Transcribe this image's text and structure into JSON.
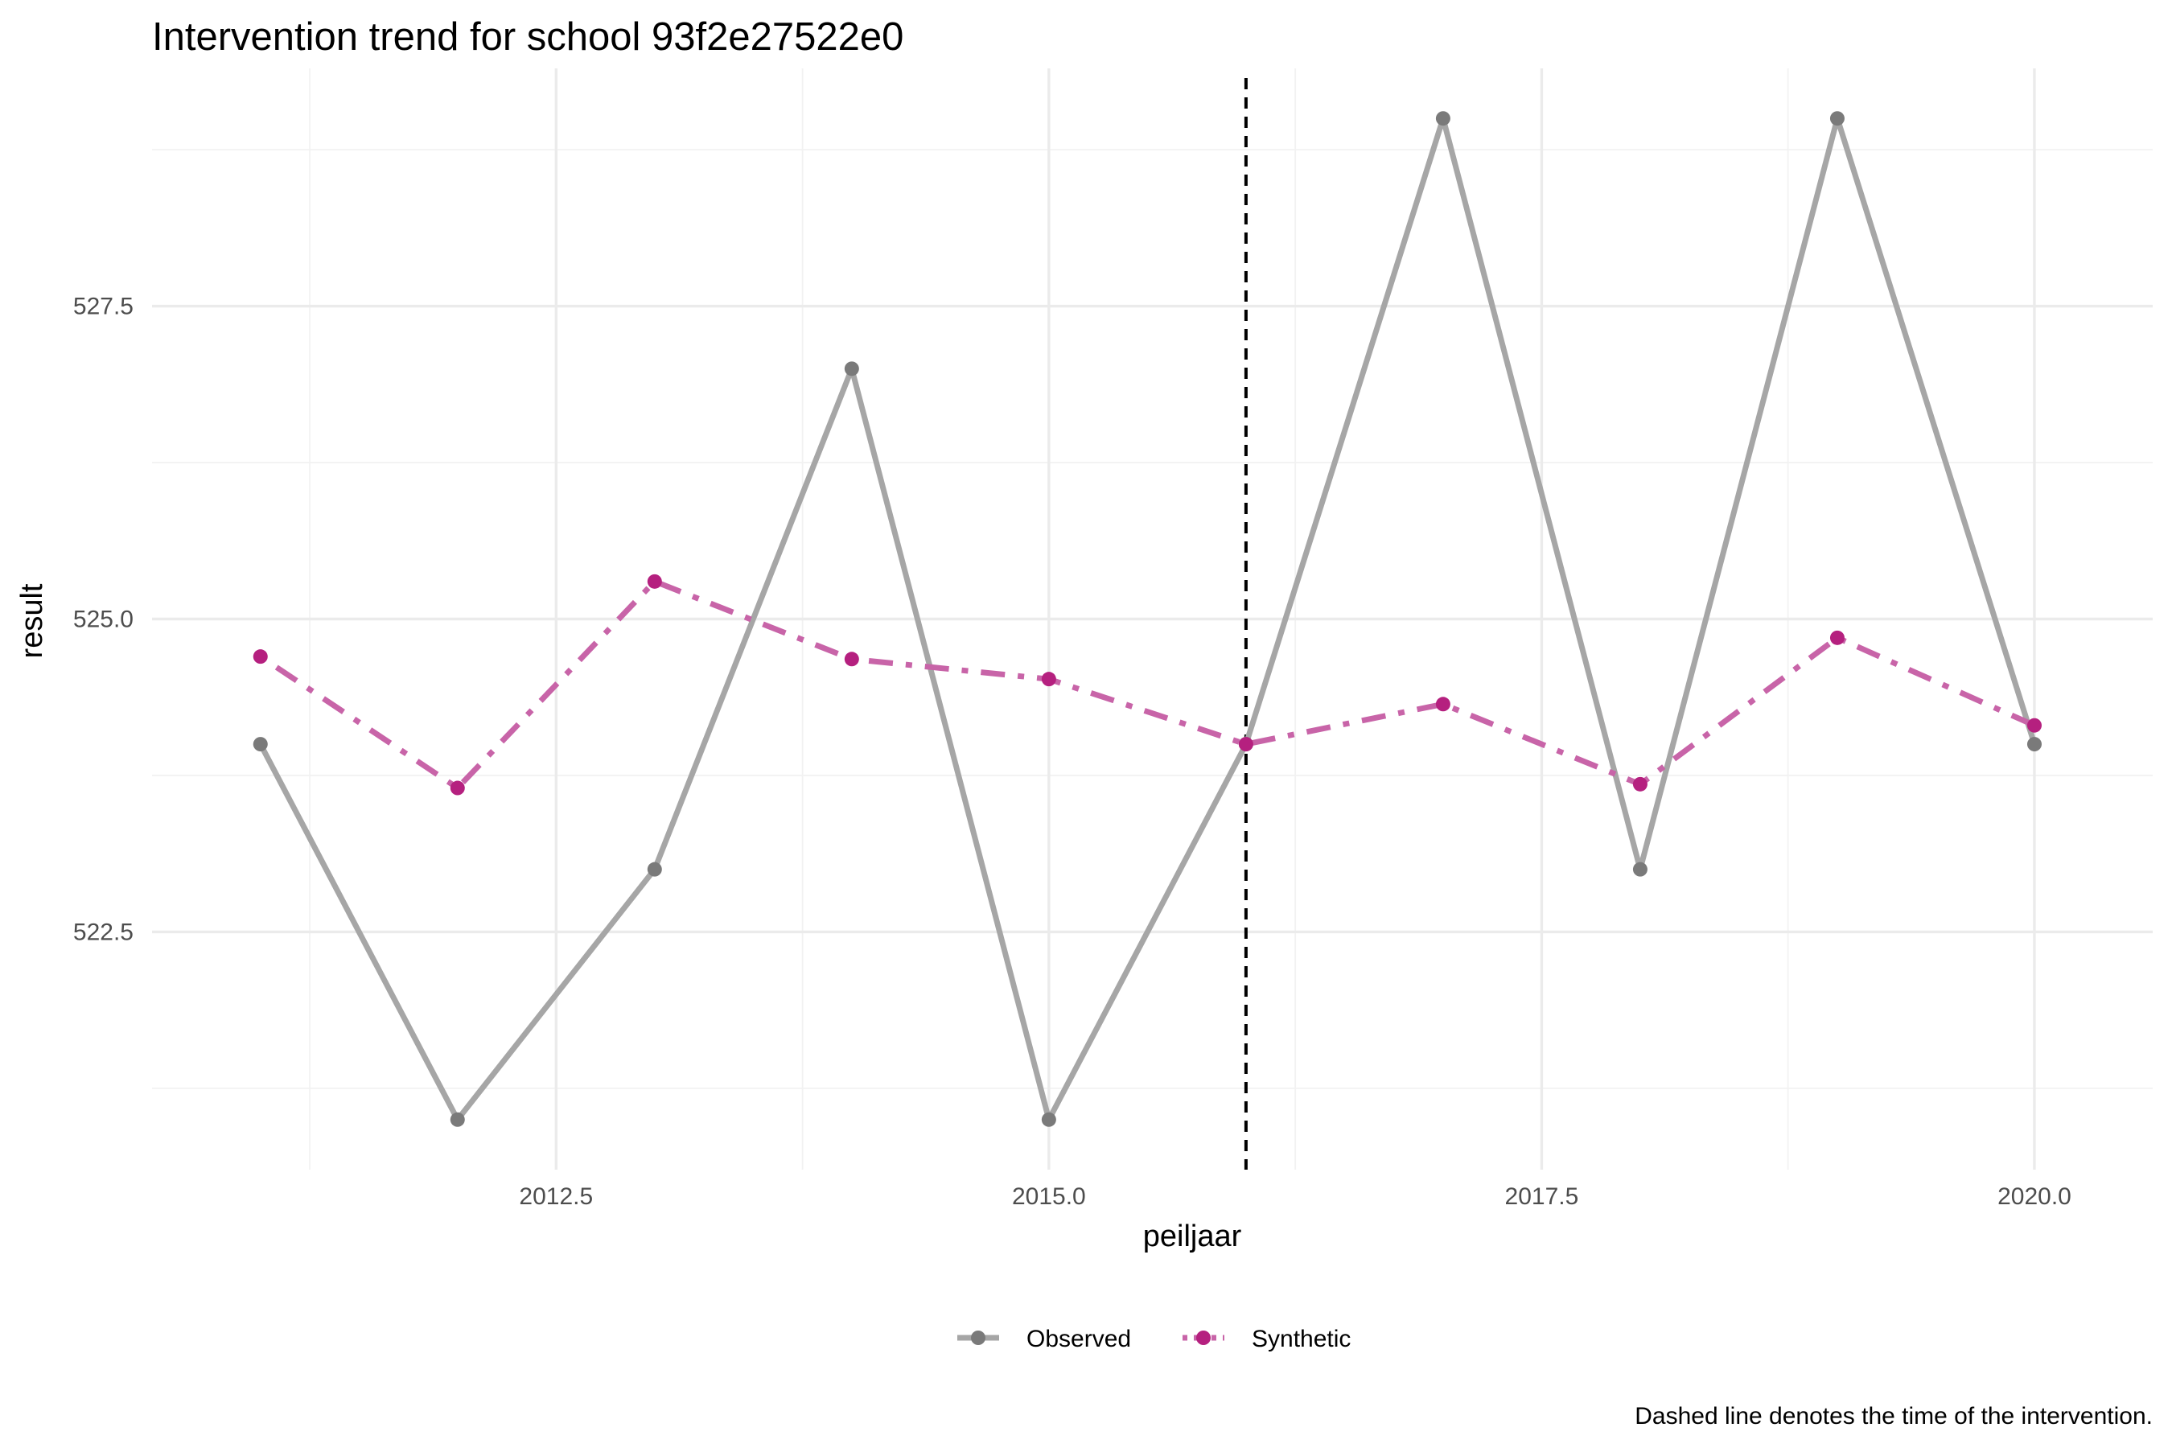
{
  "chart_data": {
    "type": "line",
    "title": "Intervention trend for school 93f2e27522e0",
    "xlabel": "peiljaar",
    "ylabel": "result",
    "caption": "Dashed line denotes the time of the intervention.",
    "x": [
      2011,
      2012,
      2013,
      2014,
      2015,
      2016,
      2017,
      2018,
      2019,
      2020
    ],
    "xlim": [
      2010.45,
      2020.6
    ],
    "ylim": [
      520.6,
      529.4
    ],
    "x_ticks": [
      2012.5,
      2015.0,
      2017.5,
      2020.0
    ],
    "x_tick_labels": [
      "2012.5",
      "2015.0",
      "2017.5",
      "2020.0"
    ],
    "y_ticks": [
      522.5,
      525.0,
      527.5
    ],
    "y_tick_labels": [
      "522.5",
      "525.0",
      "527.5"
    ],
    "grid": true,
    "legend_position": "bottom",
    "intervention_x": 2016,
    "series": [
      {
        "name": "Observed",
        "values": [
          524,
          521,
          523,
          527,
          521,
          524,
          529,
          523,
          529,
          524
        ],
        "color": "#a6a6a6",
        "point_color": "#7a7a7a",
        "dash": "solid"
      },
      {
        "name": "Synthetic",
        "values": [
          524.7,
          523.65,
          525.3,
          524.68,
          524.52,
          524.0,
          524.32,
          523.68,
          524.85,
          524.15
        ],
        "color": "#c864a8",
        "point_color": "#b5207f",
        "dash": "dotdash"
      }
    ]
  }
}
